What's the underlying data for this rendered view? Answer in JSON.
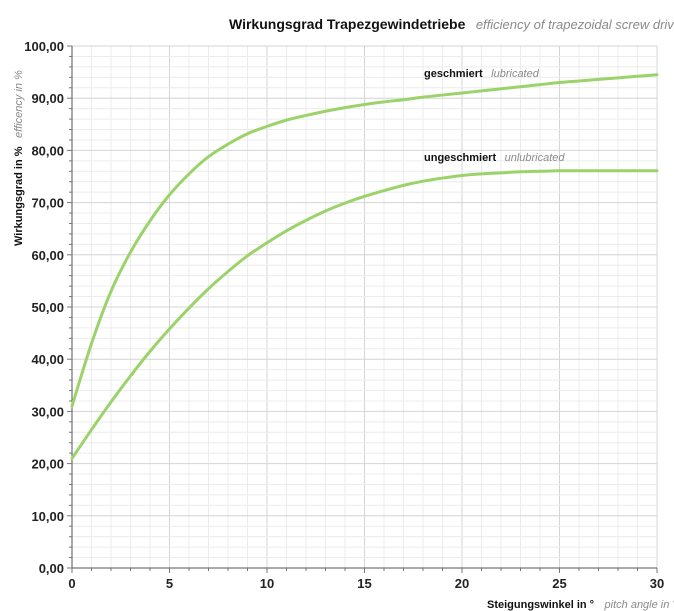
{
  "chart_data": {
    "type": "line",
    "title": "Wirkungsgrad Trapezgewindetriebe",
    "subtitle": "efficiency of trapezoidal screw drives",
    "xlabel": "Steigungswinkel in °",
    "xlabel_en": "pitch angle in °",
    "ylabel": "Wirkungsgrad in %",
    "ylabel_en": "efficency in %",
    "xlim": [
      0,
      30
    ],
    "ylim": [
      0,
      100
    ],
    "x_ticks": [
      0,
      5,
      10,
      15,
      20,
      25,
      30
    ],
    "y_ticks": [
      "0,00",
      "10,00",
      "20,00",
      "30,00",
      "40,00",
      "50,00",
      "60,00",
      "70,00",
      "80,00",
      "90,00",
      "100,00"
    ],
    "grid": true,
    "line_color": "#9bd36a",
    "series": [
      {
        "name": "geschmiert",
        "name_en": "lubricated",
        "x": [
          0,
          1,
          2,
          3,
          4,
          5,
          6,
          7,
          8,
          9,
          10,
          11,
          12,
          13,
          14,
          15,
          16,
          17,
          18,
          19,
          20,
          21,
          22,
          23,
          24,
          25,
          26,
          27,
          28,
          29,
          30
        ],
        "values": [
          31,
          43,
          53,
          60.5,
          66.5,
          71.5,
          75.5,
          78.8,
          81.2,
          83.2,
          84.6,
          85.8,
          86.7,
          87.5,
          88.2,
          88.8,
          89.3,
          89.7,
          90.2,
          90.6,
          91.0,
          91.4,
          91.8,
          92.2,
          92.6,
          93.0,
          93.3,
          93.6,
          93.9,
          94.2,
          94.5
        ]
      },
      {
        "name": "ungeschmiert",
        "name_en": "unlubricated",
        "x": [
          0,
          1,
          2,
          3,
          4,
          5,
          6,
          7,
          8,
          9,
          10,
          11,
          12,
          13,
          14,
          15,
          16,
          17,
          18,
          19,
          20,
          21,
          22,
          23,
          24,
          25,
          26,
          27,
          28,
          29,
          30
        ],
        "values": [
          21,
          26.5,
          31.8,
          36.8,
          41.5,
          45.8,
          49.8,
          53.5,
          56.8,
          59.8,
          62.3,
          64.6,
          66.6,
          68.4,
          69.9,
          71.2,
          72.3,
          73.3,
          74.1,
          74.7,
          75.2,
          75.5,
          75.7,
          75.9,
          76.0,
          76.1,
          76.1,
          76.1,
          76.1,
          76.1,
          76.1
        ]
      }
    ]
  }
}
